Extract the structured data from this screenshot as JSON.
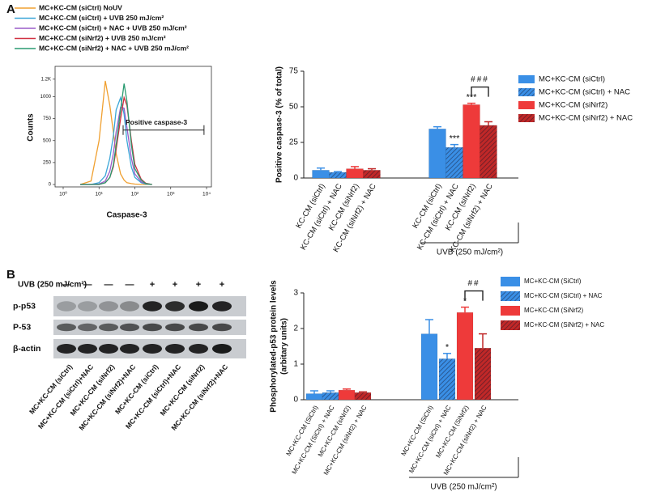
{
  "panels": [
    "A",
    "B"
  ],
  "chart_data": [
    {
      "type": "histogram-overlay",
      "ylabel": "Counts",
      "xlabel": "Caspase-3",
      "xscale": "log",
      "xlim": [
        1,
        10000
      ],
      "ylim": [
        0,
        1300
      ],
      "xticks": [
        {
          "value": 1,
          "label": "10⁰"
        },
        {
          "value": 10,
          "label": "10¹"
        },
        {
          "value": 100,
          "label": "10²"
        },
        {
          "value": 1000,
          "label": "10³"
        },
        {
          "value": 10000,
          "label": "10⁴"
        }
      ],
      "yticks": [
        0,
        250,
        500,
        750,
        1000,
        {
          "value": 1200,
          "label": "1.2K"
        }
      ],
      "gate": {
        "label": "Positive caspase-3",
        "range": [
          47,
          8500
        ],
        "level": 620
      },
      "x": [
        3,
        6,
        10,
        15,
        20,
        25,
        30,
        40,
        50,
        60,
        80,
        100,
        150,
        200,
        300
      ],
      "series": [
        {
          "name": "MC+KC-CM (siCtrl) NoUV",
          "color": "#f0a030",
          "values": [
            0,
            40,
            500,
            1180,
            900,
            600,
            350,
            120,
            50,
            20,
            10,
            5,
            0,
            0,
            0
          ]
        },
        {
          "name": "MC+KC-CM (siCtrl) + UVB 250 mJ/cm²",
          "color": "#3aa6d8",
          "values": [
            0,
            0,
            20,
            100,
            300,
            550,
            850,
            990,
            800,
            500,
            200,
            80,
            20,
            5,
            0
          ]
        },
        {
          "name": "MC+KC-CM (siCtrl) + NAC + UVB 250 mJ/cm²",
          "color": "#9a5cc8",
          "values": [
            0,
            0,
            5,
            40,
            150,
            350,
            600,
            880,
            870,
            650,
            300,
            120,
            30,
            10,
            0
          ]
        },
        {
          "name": "MC+KC-CM (siNrf2) + UVB 250 mJ/cm²",
          "color": "#d03040",
          "values": [
            0,
            0,
            0,
            20,
            80,
            200,
            400,
            750,
            990,
            900,
            500,
            230,
            60,
            15,
            0
          ]
        },
        {
          "name": "MC+KC-CM (siNrf2) + NAC + UVB 250 mJ/cm²",
          "color": "#2a9a70",
          "values": [
            0,
            0,
            0,
            20,
            80,
            220,
            450,
            850,
            1150,
            950,
            450,
            180,
            50,
            10,
            0
          ]
        }
      ]
    },
    {
      "type": "bar",
      "ylabel": "Positive caspase-3 (% of total)",
      "ylim": [
        0,
        75
      ],
      "yticks": [
        0,
        25,
        50,
        75
      ],
      "categories": [
        "KC-CM (siCtrl)",
        "KC-CM (siCtrl) + NAC",
        "KC-CM (siNrf2)",
        "KC-CM (siNrf2) + NAC",
        "KC-CM (siCtrl)",
        "KC-CM (siCtrl) + NAC",
        "KC-CM (siNrf2)",
        "KC-CM (siNrf2) + NAC"
      ],
      "group_label": "UVB (250 mJ/cm²)",
      "sig_labels": [
        null,
        null,
        null,
        null,
        null,
        "***",
        "***",
        null
      ],
      "comparisons": [
        {
          "label": "###",
          "span": [
            6,
            7
          ]
        }
      ],
      "series": [
        {
          "name": "MC+KC-CM (siCtrl)",
          "color": "#3a8fe6",
          "hatch": false,
          "values": [
            5.5,
            null,
            null,
            null,
            34.5,
            null,
            null,
            null
          ],
          "errors": [
            1.5,
            null,
            null,
            null,
            1.5,
            null,
            null,
            null
          ]
        },
        {
          "name": "MC+KC-CM (siCtrl) + NAC",
          "color": "#3a8fe6",
          "hatch": true,
          "values": [
            null,
            4,
            null,
            null,
            null,
            21.5,
            null,
            null
          ],
          "errors": [
            null,
            0.5,
            null,
            null,
            null,
            2,
            null,
            null
          ]
        },
        {
          "name": "MC+KC-CM (siNrf2)",
          "color": "#ee3a3a",
          "hatch": false,
          "values": [
            null,
            null,
            6.5,
            null,
            null,
            null,
            51.5,
            null
          ],
          "errors": [
            null,
            null,
            1.5,
            null,
            null,
            null,
            1,
            null
          ]
        },
        {
          "name": "MC+KC-CM (siNrf2) + NAC",
          "color": "#c02828",
          "hatch": true,
          "values": [
            null,
            null,
            null,
            5.5,
            null,
            null,
            null,
            37
          ],
          "errors": [
            null,
            null,
            null,
            1,
            null,
            null,
            null,
            2.5
          ]
        }
      ]
    },
    {
      "type": "bar",
      "ylabel": [
        "Phosphorylated-p53 protein levels",
        "(arbitary units)"
      ],
      "ylim": [
        0,
        3
      ],
      "yticks": [
        0,
        1,
        2,
        3
      ],
      "categories": [
        "MC+KC-CM (SiCtrl)",
        "MC+KC-CM (SiCtrl) + NAC",
        "MC+KC-CM (siNrf2)",
        "MC+KC-CM (siNrf2) + NAC",
        "MC+KC-CM (SiCtrl)",
        "MC+KC-CM (siCtrl) + NAC",
        "MC+KC-CM (SiNrf2)",
        "MC+KC-CM (siNrf2) + NAC"
      ],
      "group_label": "UVB (250 mJ/cm²)",
      "sig_labels": [
        null,
        null,
        null,
        null,
        null,
        "*",
        "*",
        null
      ],
      "comparisons": [
        {
          "label": "##",
          "span": [
            6,
            7
          ]
        }
      ],
      "series": [
        {
          "name": "MC+KC-CM (SiCtrl)",
          "color": "#3a8fe6",
          "hatch": false,
          "values": [
            0.17,
            null,
            null,
            null,
            1.85,
            null,
            null,
            null
          ],
          "errors": [
            0.08,
            null,
            null,
            null,
            0.4,
            null,
            null,
            null
          ]
        },
        {
          "name": "MC+KC-CM (SiCtrl) + NAC",
          "color": "#3a8fe6",
          "hatch": true,
          "values": [
            null,
            0.2,
            null,
            null,
            null,
            1.15,
            null,
            null
          ],
          "errors": [
            null,
            0.05,
            null,
            null,
            null,
            0.15,
            null,
            null
          ]
        },
        {
          "name": "MC+KC-CM (SiNrf2)",
          "color": "#ee3a3a",
          "hatch": false,
          "values": [
            null,
            null,
            0.27,
            null,
            null,
            null,
            2.45,
            null
          ],
          "errors": [
            null,
            null,
            0.03,
            null,
            null,
            null,
            0.15,
            null
          ]
        },
        {
          "name": "MC+KC-CM (SiNrf2) + NAC",
          "color": "#c02828",
          "hatch": true,
          "values": [
            null,
            null,
            null,
            0.2,
            null,
            null,
            null,
            1.45
          ],
          "errors": [
            null,
            null,
            null,
            0.02,
            null,
            null,
            null,
            0.4
          ]
        }
      ]
    }
  ],
  "blot": {
    "treatment": "UVB (250 mJ/cm²)",
    "signs": [
      "—",
      "—",
      "—",
      "—",
      "+",
      "+",
      "+",
      "+"
    ],
    "rows": [
      "p-p53",
      "P-53",
      "β-actin"
    ],
    "lanes": [
      "MC+KC-CM (siCtrl)",
      "MC+KC-CM (siCtrl)+NAC",
      "MC+KC-CM (siNrf2)",
      "MC+KC-CM (siNrf2)+NAC",
      "MC+KC-CM (siCtrl)",
      "MC+KC-CM (siCtrl)+NAC",
      "MC+KC-CM (siNrf2)",
      "MC+KC-CM (siNrf2)+NAC"
    ]
  }
}
